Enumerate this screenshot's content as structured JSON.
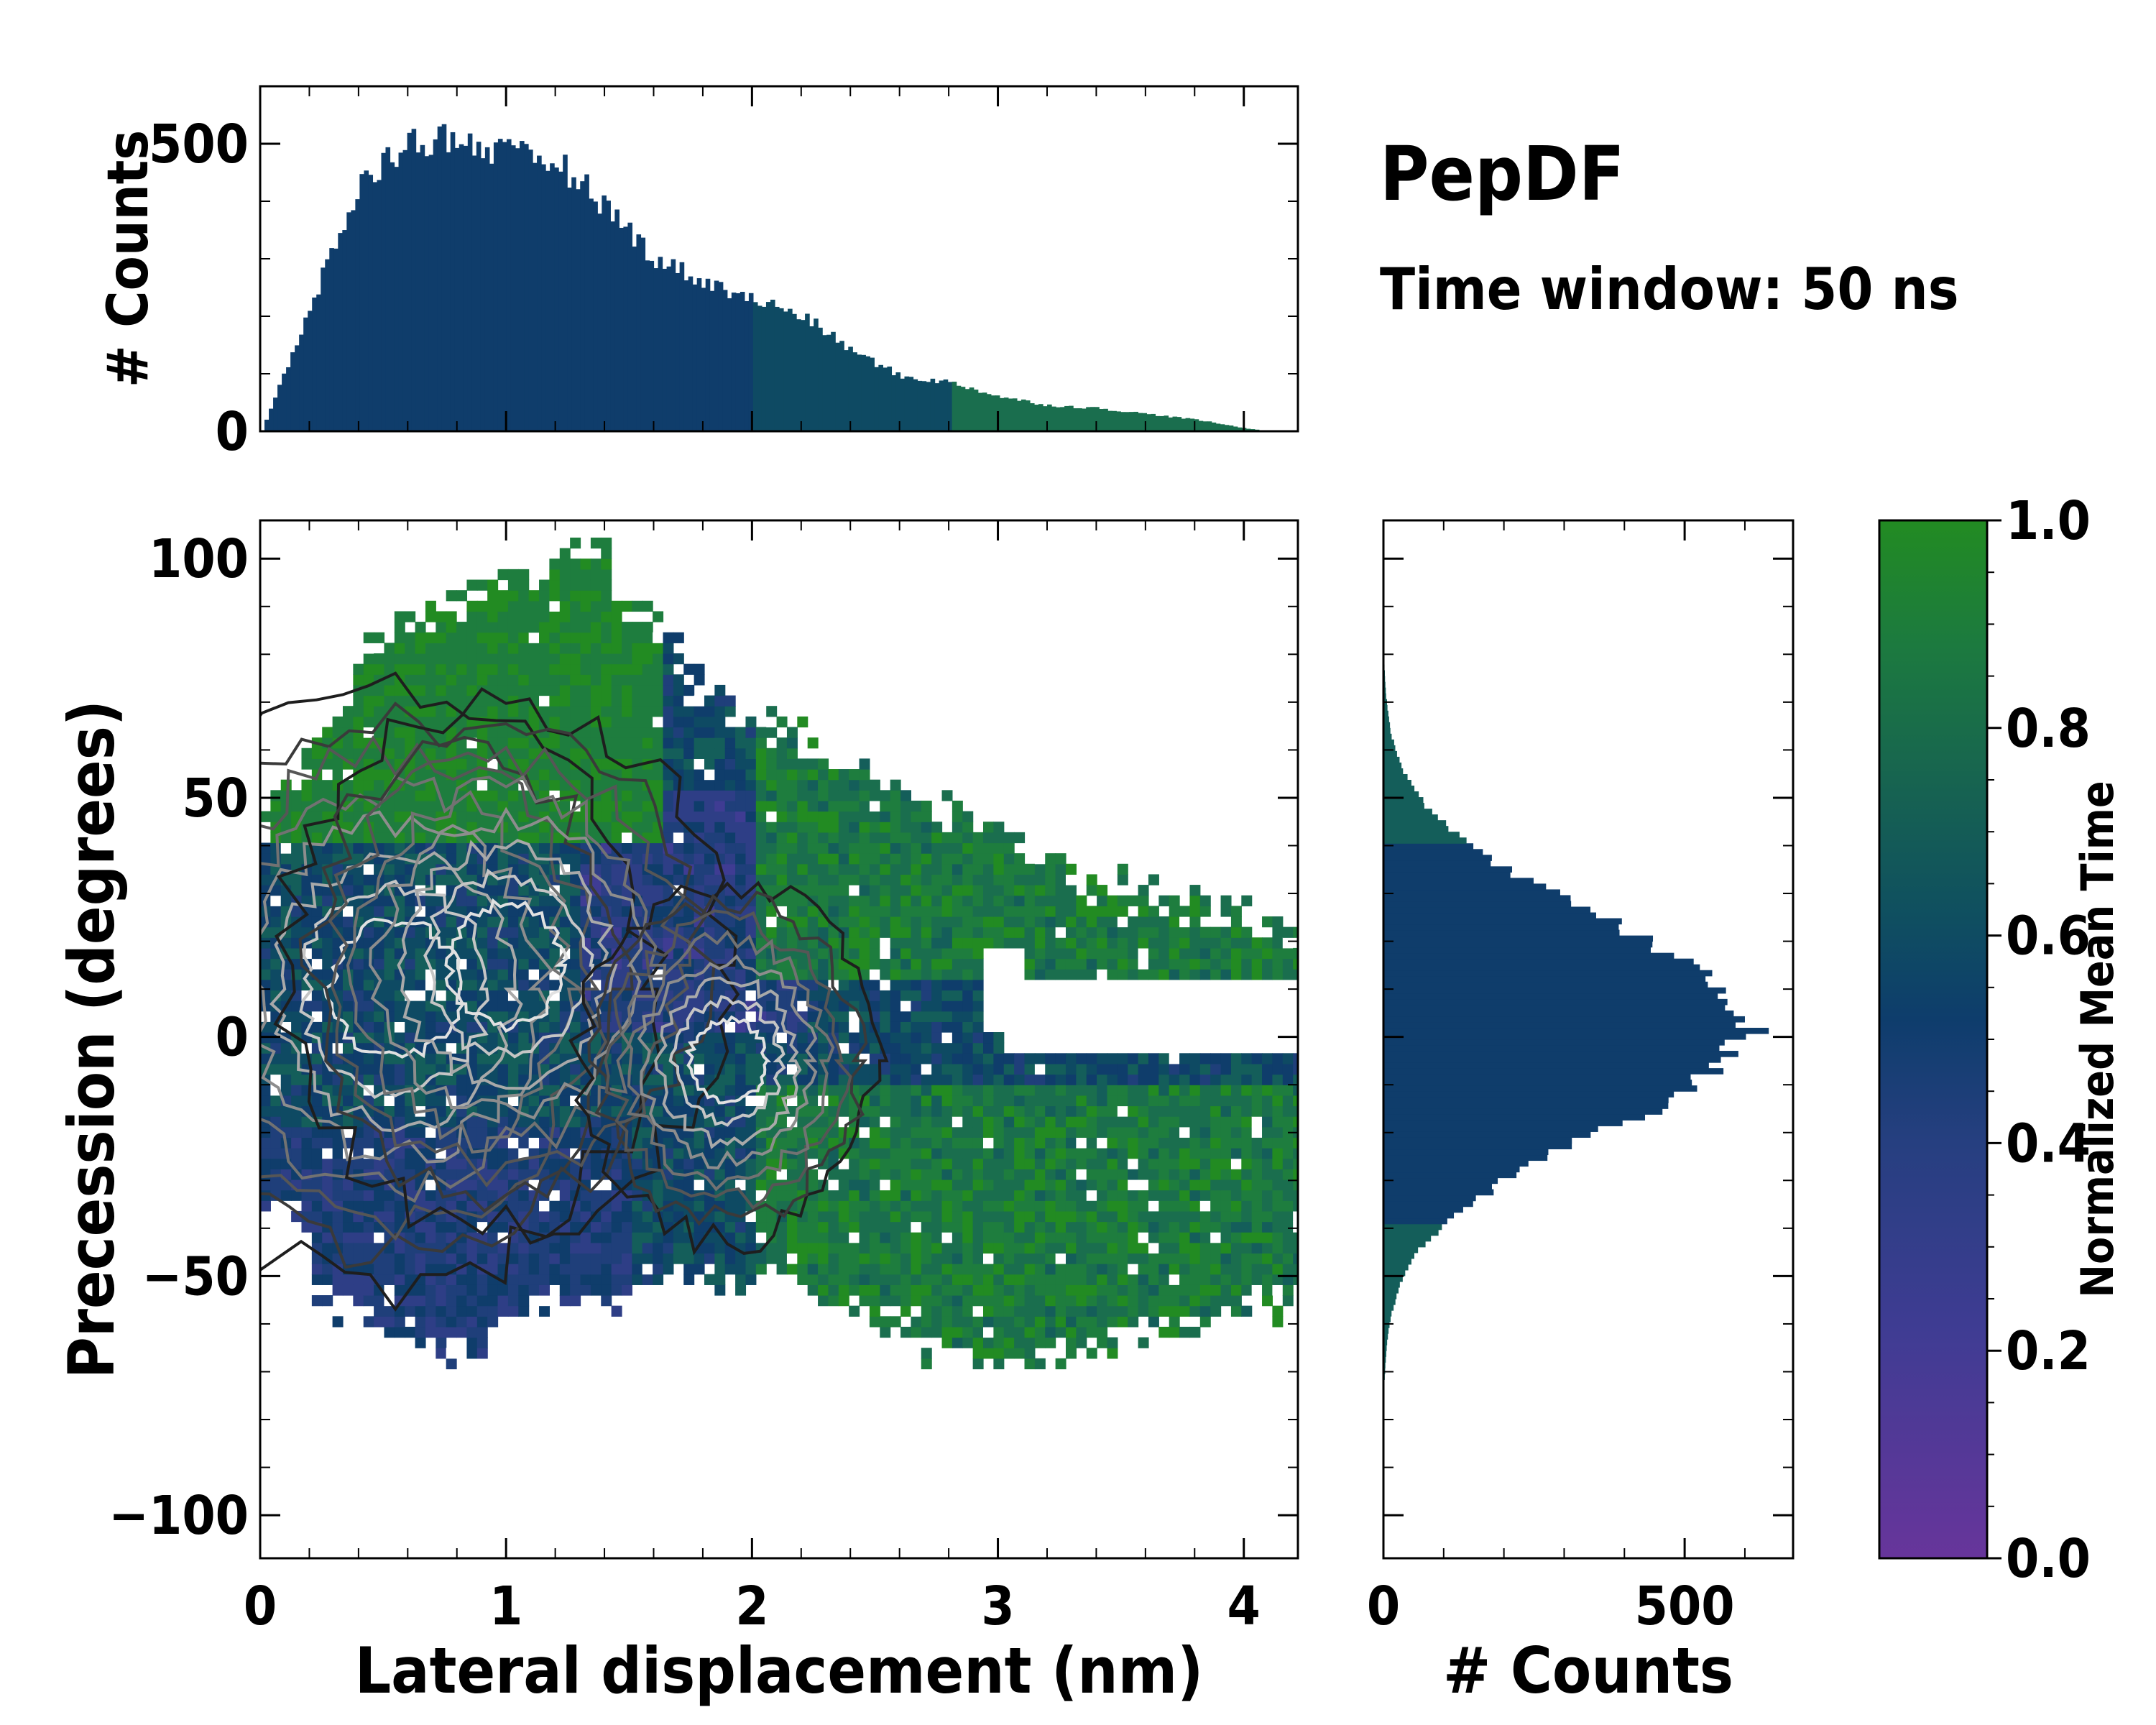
{
  "header": {
    "title": "PepDF",
    "subtitle": "Time window: 50 ns"
  },
  "colors": {
    "cmap": [
      "#67359b",
      "#3f3c93",
      "#2e3e86",
      "#1f3f7a",
      "#0f3d6b",
      "#0e4a63",
      "#145e5a",
      "#1a6e4e",
      "#1e7d3e",
      "#228b22"
    ],
    "contour_dark": "#1a1a1a",
    "contour_light": "#e0e0e0"
  },
  "chart_data": [
    {
      "id": "joint",
      "type": "heatmap",
      "xlabel": "Lateral displacement (nm)",
      "ylabel": "Precession (degrees)",
      "xlim": [
        0,
        4.22
      ],
      "ylim": [
        -109,
        108
      ],
      "xticks": [
        0,
        1,
        2,
        3,
        4
      ],
      "yticks": [
        -100,
        -50,
        0,
        50,
        100
      ],
      "tick_labels_x": [
        "0",
        "1",
        "2",
        "3",
        "4"
      ],
      "tick_labels_y": [
        "−100",
        "−50",
        "0",
        "50",
        "100"
      ],
      "density_peaks": [
        {
          "x": 0.55,
          "y": 10,
          "weight": 1.0
        },
        {
          "x": 1.0,
          "y": 15,
          "weight": 0.85
        },
        {
          "x": 1.9,
          "y": -5,
          "weight": 0.5
        }
      ],
      "contour_levels": 8
    },
    {
      "id": "top-marginal",
      "type": "bar",
      "ylabel": "# Counts",
      "ylim": [
        0,
        600
      ],
      "yticks": [
        0,
        500
      ],
      "tick_labels_y": [
        "0",
        "500"
      ],
      "x": [
        0.0,
        0.2,
        0.4,
        0.6,
        0.8,
        1.0,
        1.2,
        1.4,
        1.6,
        1.8,
        2.0,
        2.2,
        2.4,
        2.6,
        2.8,
        3.0,
        3.2,
        3.4,
        3.6,
        3.8,
        4.0,
        4.1
      ],
      "values": [
        0,
        220,
        430,
        505,
        510,
        480,
        470,
        390,
        300,
        260,
        230,
        200,
        140,
        95,
        85,
        60,
        45,
        40,
        30,
        20,
        5,
        0
      ],
      "bins": 240
    },
    {
      "id": "right-marginal",
      "type": "bar",
      "xlabel": "# Counts",
      "xlim": [
        0,
        680
      ],
      "xticks": [
        0,
        500
      ],
      "tick_labels_x": [
        "0",
        "500"
      ],
      "peak_value": 610,
      "peak_y": 2,
      "sigma_deg": 22,
      "bins": 180
    },
    {
      "id": "colorbar",
      "type": "colorbar",
      "label": "Normalized Mean Time",
      "range": [
        0.0,
        1.0
      ],
      "ticks": [
        0.0,
        0.2,
        0.4,
        0.6,
        0.8,
        1.0
      ],
      "tick_labels": [
        "0.0",
        "0.2",
        "0.4",
        "0.6",
        "0.8",
        "1.0"
      ]
    }
  ]
}
